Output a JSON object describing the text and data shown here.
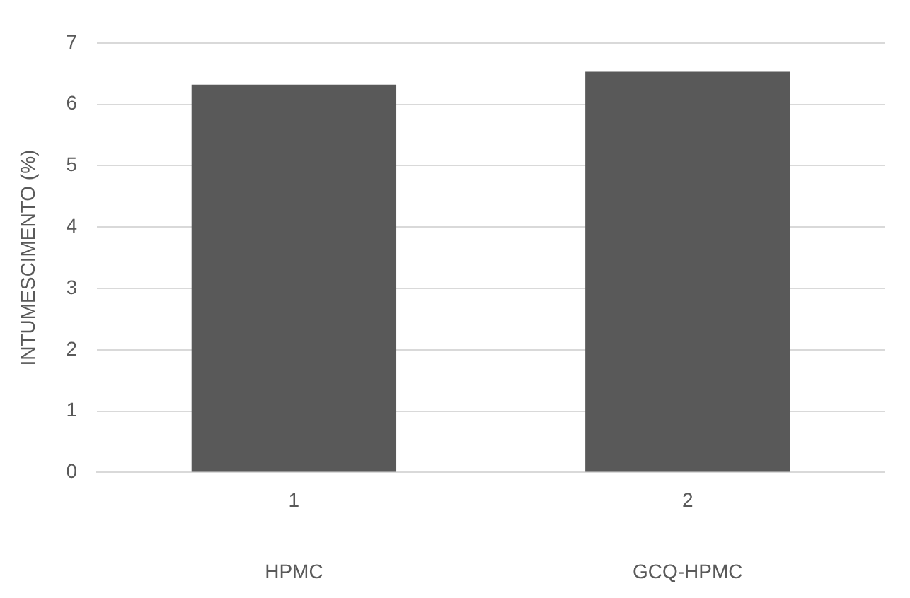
{
  "chart_data": {
    "type": "bar",
    "ylabel": "INTUMESCIMENTO (%)",
    "categories": [
      "1",
      "2"
    ],
    "values": [
      6.32,
      6.53
    ],
    "color": "#595959",
    "ylim": [
      0,
      7
    ],
    "yticks": [
      0,
      1,
      2,
      3,
      4,
      5,
      6,
      7
    ],
    "grid": "y",
    "legend": false,
    "annotations": [
      "HPMC",
      "GCQ-HPMC"
    ]
  }
}
